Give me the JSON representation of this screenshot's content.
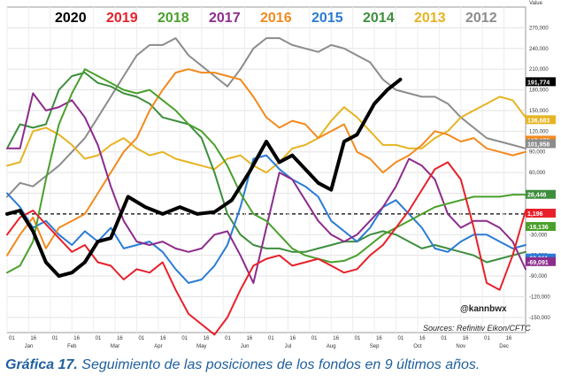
{
  "chart_data": {
    "type": "line",
    "value_label": "Value",
    "x_ticks_top": [
      "01",
      "16",
      "01",
      "16",
      "01",
      "16",
      "01",
      "16",
      "01",
      "16",
      "01",
      "16",
      "01",
      "16",
      "01",
      "16",
      "01",
      "16",
      "01",
      "16",
      "01",
      "16",
      "01",
      "16"
    ],
    "x_ticks_bottom": [
      "Jan",
      "Feb",
      "Mar",
      "Apr",
      "May",
      "Jun",
      "Jul",
      "Aug",
      "Sep",
      "Oct",
      "Nov",
      "Dec"
    ],
    "y_ticks": [
      270000,
      240000,
      210000,
      180000,
      150000,
      120000,
      90000,
      60000,
      30000,
      0,
      -30000,
      -60000,
      -90000,
      -120000,
      -150000
    ],
    "y_tick_labels": [
      "270,000",
      "240,000",
      "210,000",
      "180,000",
      "150,000",
      "120,000",
      "90,000",
      "60,000",
      "30,000",
      "0",
      "-30,000",
      "-60,000",
      "-90,000",
      "-120,000",
      "-150,000"
    ],
    "ylim": [
      -172000,
      300000
    ],
    "xlim": [
      0,
      12
    ],
    "grid": true,
    "zero_line": "dashed",
    "annotations": [
      "@kannbwx",
      "Sources: Refinitiv Eikon/CFTC"
    ],
    "series": [
      {
        "name": "2020",
        "color": "#000000",
        "width": 4,
        "x": [
          0,
          0.3,
          0.6,
          0.9,
          1.2,
          1.5,
          1.8,
          2.1,
          2.4,
          2.8,
          3.2,
          3.6,
          4,
          4.4,
          4.8,
          5.2,
          5.6,
          6,
          6.3,
          6.6,
          6.9,
          7.2,
          7.5,
          7.8,
          8.1,
          8.5,
          8.8,
          9.1
        ],
        "y": [
          0,
          5000,
          -25000,
          -70000,
          -90000,
          -85000,
          -70000,
          -40000,
          -35000,
          25000,
          10000,
          0,
          10000,
          0,
          3000,
          20000,
          60000,
          105000,
          75000,
          85000,
          65000,
          45000,
          35000,
          105000,
          115000,
          160000,
          180000,
          195000
        ]
      },
      {
        "name": "2019",
        "color": "#e8202a",
        "width": 2,
        "x": [
          0,
          0.3,
          0.6,
          0.9,
          1.2,
          1.5,
          1.8,
          2.1,
          2.4,
          2.7,
          3,
          3.3,
          3.6,
          3.9,
          4.2,
          4.5,
          4.8,
          5.1,
          5.4,
          5.7,
          6,
          6.3,
          6.6,
          6.9,
          7.2,
          7.5,
          7.8,
          8.1,
          8.4,
          8.7,
          9,
          9.3,
          9.6,
          9.9,
          10.2,
          10.5,
          10.8,
          11.1,
          11.4,
          11.7,
          12
        ],
        "y": [
          -30000,
          -5000,
          5000,
          -15000,
          -35000,
          -55000,
          -45000,
          -70000,
          -75000,
          -95000,
          -80000,
          -85000,
          -70000,
          -110000,
          -145000,
          -160000,
          -175000,
          -150000,
          -110000,
          -75000,
          -65000,
          -60000,
          -75000,
          -70000,
          -65000,
          -75000,
          -85000,
          -80000,
          -60000,
          -45000,
          -20000,
          5000,
          35000,
          65000,
          75000,
          50000,
          -20000,
          -100000,
          -110000,
          -60000,
          5000
        ]
      },
      {
        "name": "2018",
        "color": "#4aa02c",
        "width": 2,
        "x": [
          0,
          0.3,
          0.6,
          0.9,
          1.2,
          1.5,
          1.8,
          2.1,
          2.4,
          2.7,
          3,
          3.3,
          3.6,
          3.9,
          4.2,
          4.5,
          4.8,
          5.1,
          5.4,
          5.7,
          6,
          6.3,
          6.6,
          6.9,
          7.2,
          7.5,
          7.8,
          8.1,
          8.4,
          8.7,
          9,
          9.3,
          9.6,
          9.9,
          10.2,
          10.5,
          10.8,
          11.1,
          11.4,
          11.7,
          12
        ],
        "y": [
          -85000,
          -75000,
          -40000,
          50000,
          130000,
          175000,
          210000,
          200000,
          190000,
          180000,
          175000,
          180000,
          165000,
          150000,
          130000,
          120000,
          100000,
          70000,
          30000,
          0,
          -10000,
          -30000,
          -50000,
          -60000,
          -65000,
          -70000,
          -68000,
          -60000,
          -45000,
          -30000,
          -20000,
          -10000,
          0,
          10000,
          15000,
          20000,
          25000,
          25000,
          25000,
          28000,
          28000
        ]
      },
      {
        "name": "2017",
        "color": "#8c2c8c",
        "width": 2,
        "x": [
          0,
          0.3,
          0.6,
          0.9,
          1.2,
          1.5,
          1.8,
          2.1,
          2.4,
          2.7,
          3,
          3.3,
          3.6,
          3.9,
          4.2,
          4.5,
          4.8,
          5.1,
          5.4,
          5.7,
          6,
          6.3,
          6.6,
          6.9,
          7.2,
          7.5,
          7.8,
          8.1,
          8.4,
          8.7,
          9,
          9.3,
          9.6,
          9.9,
          10.2,
          10.5,
          10.8,
          11.1,
          11.4,
          11.7,
          12
        ],
        "y": [
          95000,
          95000,
          175000,
          150000,
          155000,
          165000,
          140000,
          100000,
          40000,
          -10000,
          -40000,
          -45000,
          -40000,
          -50000,
          -55000,
          -50000,
          -30000,
          -25000,
          -60000,
          -100000,
          -20000,
          60000,
          50000,
          20000,
          -10000,
          -30000,
          -40000,
          -30000,
          -10000,
          10000,
          40000,
          80000,
          70000,
          50000,
          0,
          -20000,
          -10000,
          -10000,
          -20000,
          -40000,
          -80000
        ]
      },
      {
        "name": "2016",
        "color": "#f28a1e",
        "width": 2,
        "x": [
          0,
          0.3,
          0.6,
          0.9,
          1.2,
          1.5,
          1.8,
          2.1,
          2.4,
          2.7,
          3,
          3.3,
          3.6,
          3.9,
          4.2,
          4.5,
          4.8,
          5.1,
          5.4,
          5.7,
          6,
          6.3,
          6.6,
          6.9,
          7.2,
          7.5,
          7.8,
          8.1,
          8.4,
          8.7,
          9,
          9.3,
          9.6,
          9.9,
          10.2,
          10.5,
          10.8,
          11.1,
          11.4,
          11.7,
          12
        ],
        "y": [
          -60000,
          -30000,
          -5000,
          -50000,
          -20000,
          -10000,
          0,
          30000,
          60000,
          90000,
          110000,
          150000,
          180000,
          205000,
          210000,
          205000,
          205000,
          200000,
          195000,
          170000,
          140000,
          125000,
          135000,
          130000,
          110000,
          120000,
          130000,
          90000,
          80000,
          60000,
          75000,
          85000,
          100000,
          120000,
          115000,
          105000,
          110000,
          95000,
          90000,
          85000,
          90000
        ]
      },
      {
        "name": "2015",
        "color": "#2a7bd4",
        "width": 2,
        "x": [
          0,
          0.3,
          0.6,
          0.9,
          1.2,
          1.5,
          1.8,
          2.1,
          2.4,
          2.7,
          3,
          3.3,
          3.6,
          3.9,
          4.2,
          4.5,
          4.8,
          5.1,
          5.4,
          5.7,
          6,
          6.3,
          6.6,
          6.9,
          7.2,
          7.5,
          7.8,
          8.1,
          8.4,
          8.7,
          9,
          9.3,
          9.6,
          9.9,
          10.2,
          10.5,
          10.8,
          11.1,
          11.4,
          11.7,
          12
        ],
        "y": [
          30000,
          10000,
          -20000,
          -10000,
          -30000,
          -45000,
          -25000,
          -40000,
          -20000,
          -50000,
          -45000,
          -40000,
          -55000,
          -80000,
          -100000,
          -95000,
          -75000,
          -45000,
          10000,
          80000,
          85000,
          65000,
          50000,
          40000,
          25000,
          -10000,
          -25000,
          -40000,
          -20000,
          10000,
          20000,
          0,
          -20000,
          -50000,
          -55000,
          -40000,
          -30000,
          -30000,
          -40000,
          -50000,
          -45000
        ]
      },
      {
        "name": "2014",
        "color": "#3e8e3e",
        "width": 2,
        "x": [
          0,
          0.3,
          0.6,
          0.9,
          1.2,
          1.5,
          1.8,
          2.1,
          2.4,
          2.7,
          3,
          3.3,
          3.6,
          3.9,
          4.2,
          4.5,
          4.8,
          5.1,
          5.4,
          5.7,
          6,
          6.3,
          6.6,
          6.9,
          7.2,
          7.5,
          7.8,
          8.1,
          8.4,
          8.7,
          9,
          9.3,
          9.6,
          9.9,
          10.2,
          10.5,
          10.8,
          11.1,
          11.4,
          11.7,
          12
        ],
        "y": [
          95000,
          130000,
          125000,
          130000,
          180000,
          200000,
          205000,
          190000,
          185000,
          175000,
          170000,
          160000,
          140000,
          135000,
          130000,
          110000,
          60000,
          0,
          -30000,
          -45000,
          -50000,
          -50000,
          -55000,
          -55000,
          -50000,
          -45000,
          -40000,
          -40000,
          -30000,
          -25000,
          -30000,
          -40000,
          -50000,
          -45000,
          -50000,
          -55000,
          -60000,
          -70000,
          -65000,
          -60000,
          -55000
        ]
      },
      {
        "name": "2013",
        "color": "#e6b422",
        "width": 2,
        "x": [
          0,
          0.3,
          0.6,
          0.9,
          1.2,
          1.5,
          1.8,
          2.1,
          2.4,
          2.7,
          3,
          3.3,
          3.6,
          3.9,
          4.2,
          4.5,
          4.8,
          5.1,
          5.4,
          5.7,
          6,
          6.3,
          6.6,
          6.9,
          7.2,
          7.5,
          7.8,
          8.1,
          8.4,
          8.7,
          9,
          9.3,
          9.6,
          9.9,
          10.2,
          10.5,
          10.8,
          11.1,
          11.4,
          11.7,
          12
        ],
        "y": [
          70000,
          75000,
          120000,
          125000,
          115000,
          100000,
          80000,
          85000,
          100000,
          110000,
          95000,
          85000,
          90000,
          80000,
          75000,
          70000,
          65000,
          80000,
          85000,
          70000,
          60000,
          75000,
          95000,
          100000,
          110000,
          135000,
          155000,
          140000,
          120000,
          100000,
          100000,
          95000,
          95000,
          110000,
          120000,
          140000,
          150000,
          160000,
          170000,
          165000,
          140000
        ]
      },
      {
        "name": "2012",
        "color": "#8c8c8c",
        "width": 2,
        "x": [
          0,
          0.3,
          0.6,
          0.9,
          1.2,
          1.5,
          1.8,
          2.1,
          2.4,
          2.7,
          3,
          3.3,
          3.6,
          3.9,
          4.2,
          4.5,
          4.8,
          5.1,
          5.4,
          5.7,
          6,
          6.3,
          6.6,
          6.9,
          7.2,
          7.5,
          7.8,
          8.1,
          8.4,
          8.7,
          9,
          9.3,
          9.6,
          9.9,
          10.2,
          10.5,
          10.8,
          11.1,
          11.4,
          11.7,
          12
        ],
        "y": [
          25000,
          45000,
          40000,
          55000,
          70000,
          90000,
          110000,
          140000,
          170000,
          200000,
          230000,
          245000,
          245000,
          255000,
          230000,
          215000,
          200000,
          185000,
          210000,
          240000,
          255000,
          255000,
          245000,
          240000,
          235000,
          245000,
          240000,
          230000,
          220000,
          195000,
          180000,
          175000,
          170000,
          170000,
          160000,
          140000,
          125000,
          110000,
          105000,
          100000,
          95000
        ]
      }
    ],
    "right_labels": [
      {
        "value": 191774,
        "text": "191,774",
        "color": "#000000"
      },
      {
        "value": 136683,
        "text": "136,683",
        "color": "#e6b422"
      },
      {
        "value": 107075,
        "text": "107,075",
        "color": "#f28a1e"
      },
      {
        "value": 101958,
        "text": "101,958",
        "color": "#8c8c8c"
      },
      {
        "value": 28446,
        "text": "28,446",
        "color": "#3e8e3e"
      },
      {
        "value": 1196,
        "text": "1,196",
        "color": "#e8202a"
      },
      {
        "value": -18136,
        "text": "-18,136",
        "color": "#4aa02c"
      },
      {
        "value": -63911,
        "text": "-63,911",
        "color": "#2a7bd4"
      },
      {
        "value": -69091,
        "text": "-69,091",
        "color": "#8c2c8c"
      }
    ]
  },
  "caption": {
    "label": "Gráfica 17.",
    "text": " Seguimiento de las posiciones de los fondos en 9 últimos años."
  }
}
